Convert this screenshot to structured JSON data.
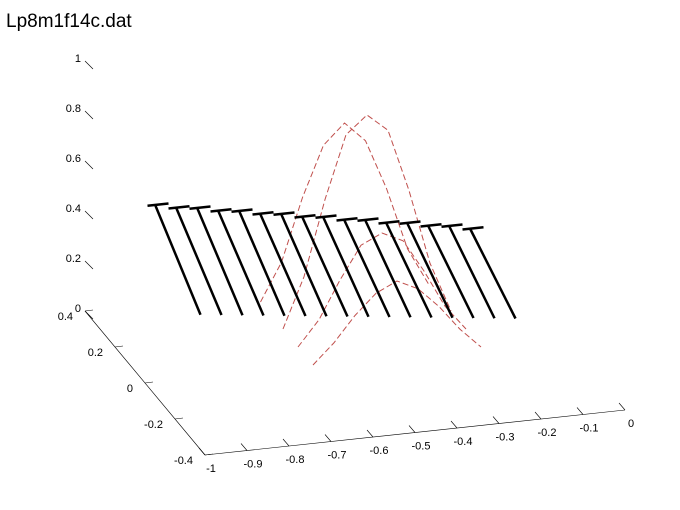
{
  "chart_data": {
    "type": "line3d",
    "title": "Lp8m1f14c.dat",
    "xlim": [
      -1,
      0
    ],
    "ylim": [
      -0.4,
      0.4
    ],
    "zlim": [
      0,
      1
    ],
    "xticks": [
      -1,
      -0.9,
      -0.8,
      -0.7,
      -0.6,
      -0.5,
      -0.4,
      -0.3,
      -0.2,
      -0.1,
      0
    ],
    "yticks": [
      -0.4,
      -0.2,
      0,
      0.2,
      0.4
    ],
    "zticks": [
      0,
      0.2,
      0.4,
      0.6,
      0.8,
      1
    ],
    "sticks": {
      "color": "#000000",
      "y_top": 0.35,
      "y_bottom": 0.05,
      "x": [
        -0.85,
        -0.8,
        -0.75,
        -0.7,
        -0.65,
        -0.6,
        -0.55,
        -0.5,
        -0.45,
        -0.4,
        -0.35,
        -0.3,
        -0.25,
        -0.2,
        -0.15,
        -0.1
      ],
      "z_top": [
        0.43,
        0.41,
        0.4,
        0.38,
        0.37,
        0.35,
        0.34,
        0.32,
        0.31,
        0.29,
        0.28,
        0.26,
        0.25,
        0.23,
        0.22,
        0.2
      ],
      "z_bottom": [
        0.21,
        0.2,
        0.19,
        0.18,
        0.17,
        0.16,
        0.15,
        0.14,
        0.13,
        0.12,
        0.11,
        0.1,
        0.09,
        0.08,
        0.07,
        0.06
      ]
    },
    "curves": {
      "color": "#c0504d",
      "x": [
        -0.6,
        -0.55,
        -0.5,
        -0.45,
        -0.4,
        -0.35,
        -0.3,
        -0.25,
        -0.2
      ],
      "series": [
        {
          "y": 0.35,
          "values": [
            0,
            0.15,
            0.4,
            0.6,
            0.68,
            0.6,
            0.4,
            0.15,
            0
          ]
        },
        {
          "y": 0.2,
          "values": [
            0,
            0.2,
            0.5,
            0.75,
            0.82,
            0.75,
            0.5,
            0.2,
            0
          ]
        },
        {
          "y": 0.1,
          "values": [
            0,
            0.1,
            0.25,
            0.38,
            0.42,
            0.38,
            0.25,
            0.1,
            0
          ]
        },
        {
          "y": 0,
          "values": [
            0,
            0.08,
            0.18,
            0.26,
            0.3,
            0.26,
            0.18,
            0.08,
            0
          ]
        }
      ]
    }
  }
}
